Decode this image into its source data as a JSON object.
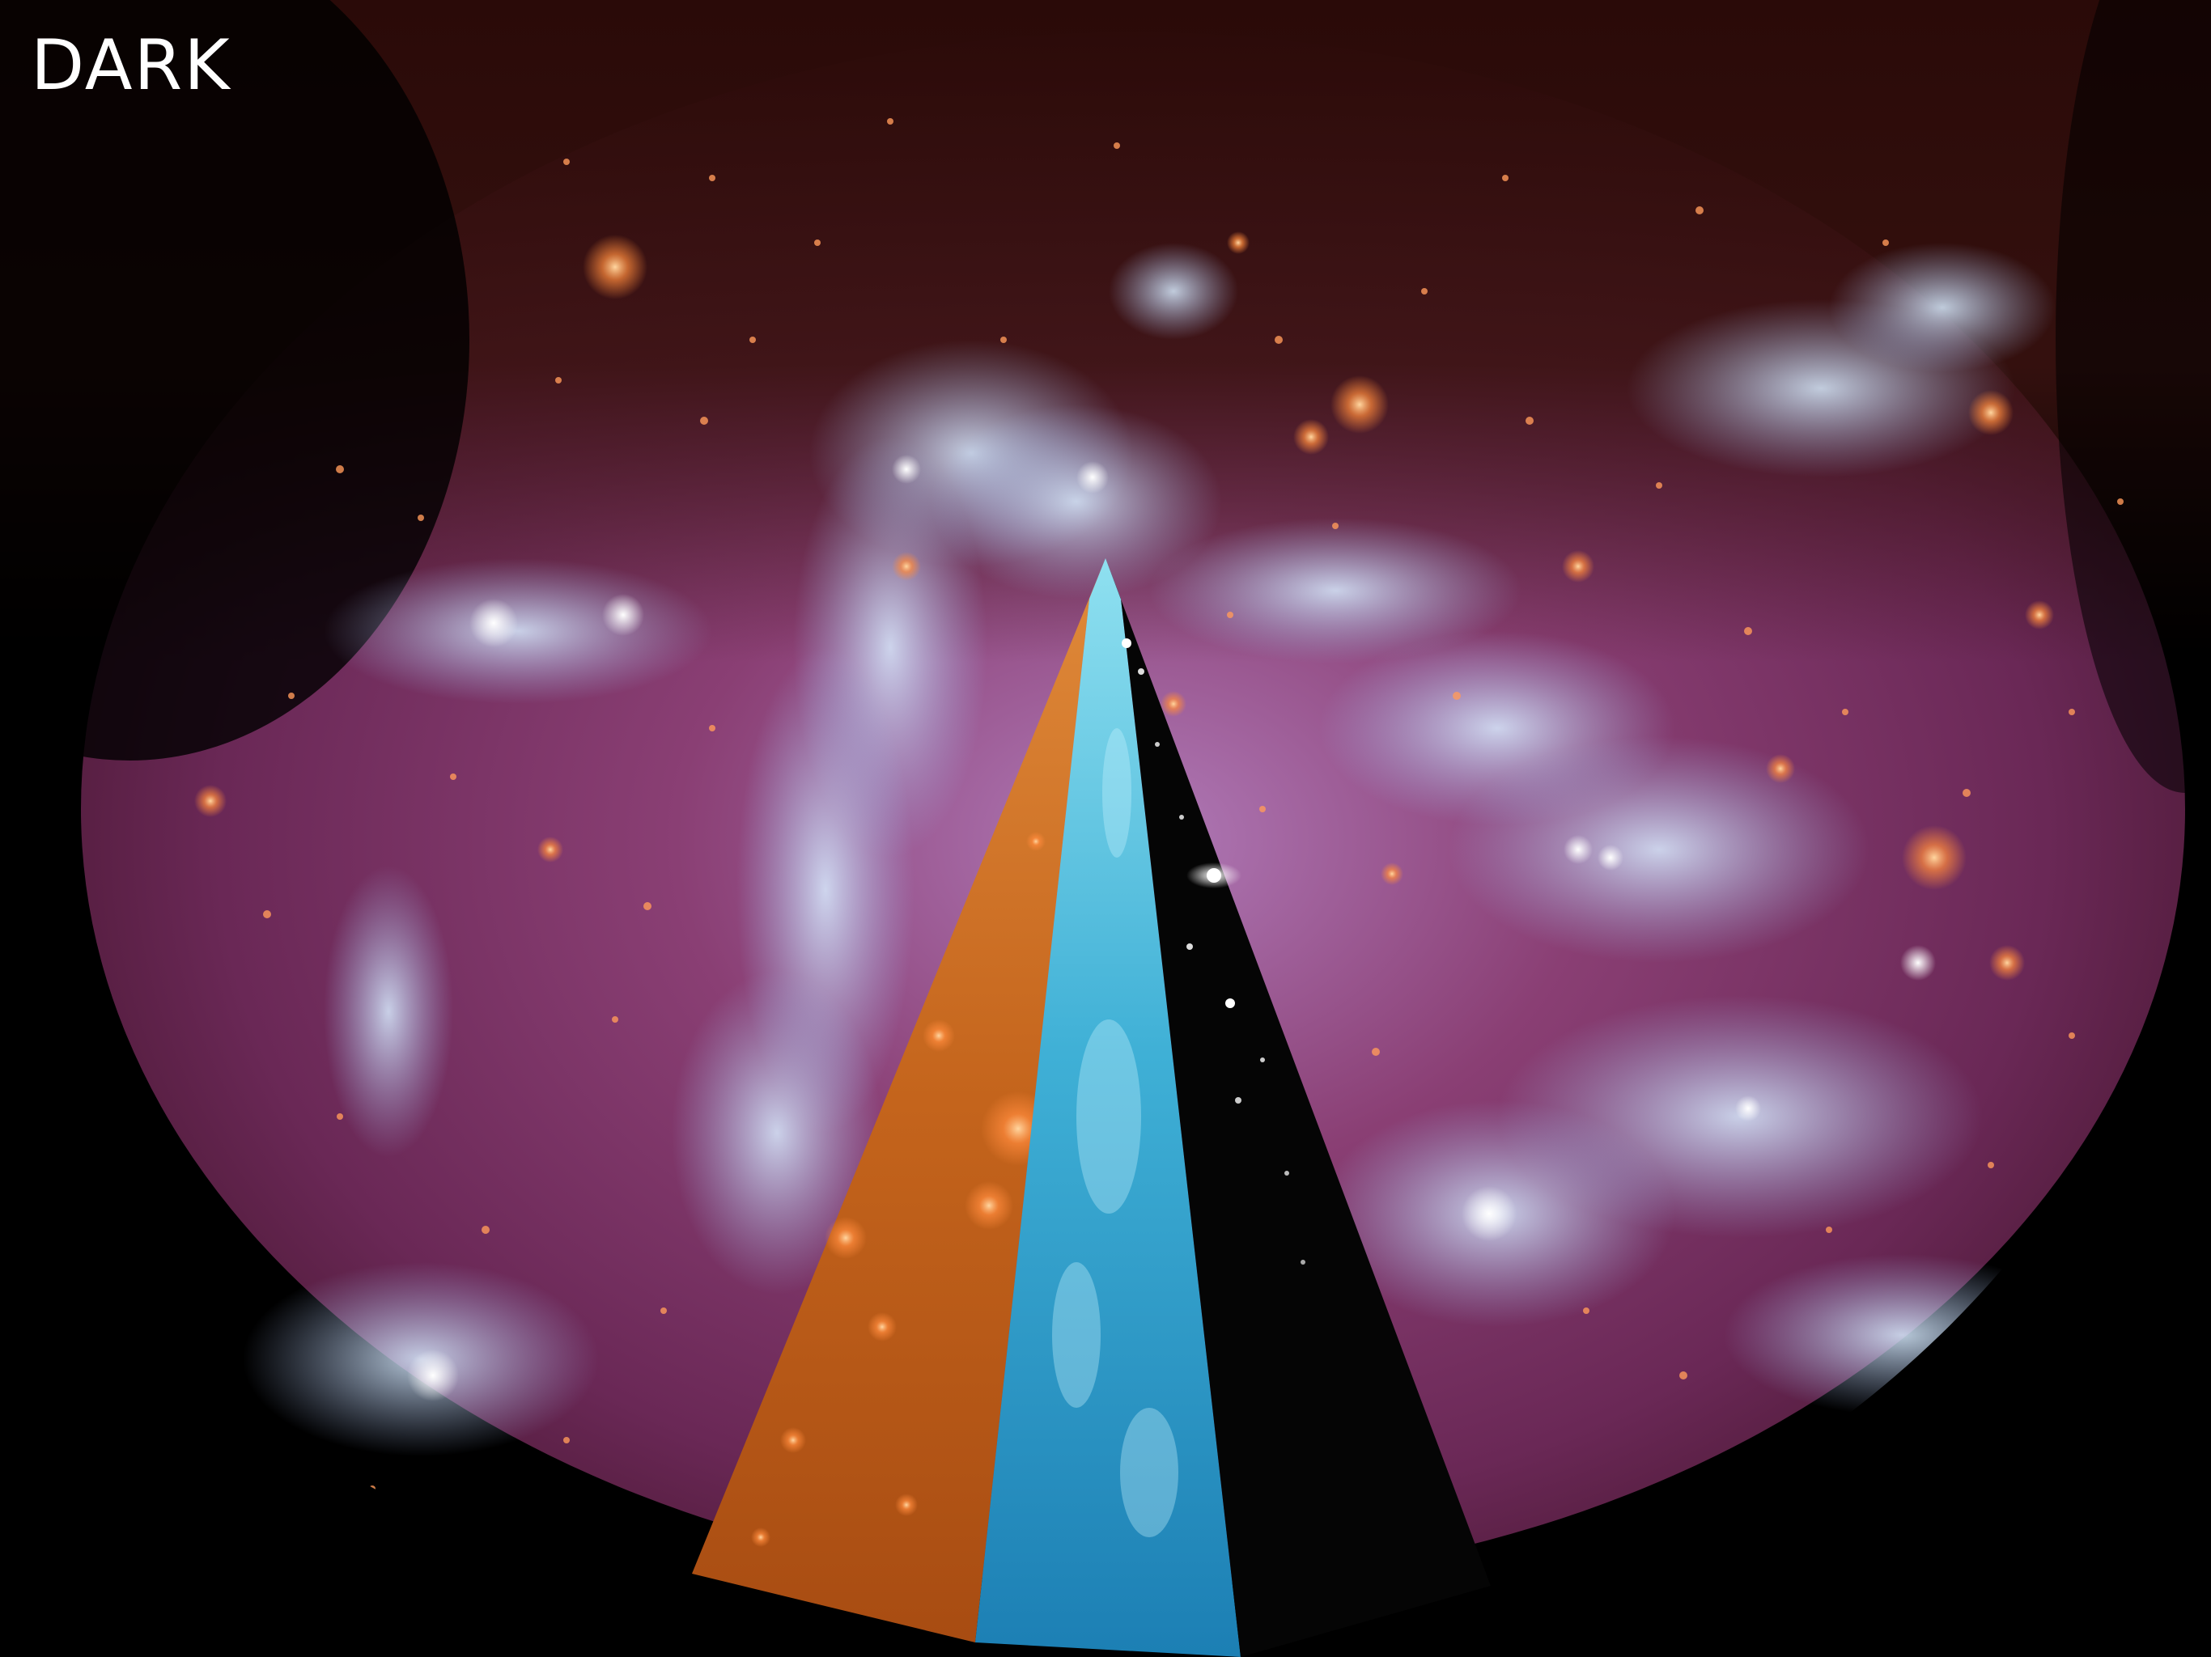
{
  "slide": {
    "title": "DARK"
  },
  "figure": {
    "colors": {
      "background": "#000000",
      "dark_matter_wedge": "#d8721c",
      "gas_wedge": "#2a9ac4",
      "stars_wedge": "#050505",
      "composite_magenta": "#7a2f63",
      "composite_blue": "#9fb6e6",
      "halo_orange": "#ff8a3c"
    }
  }
}
